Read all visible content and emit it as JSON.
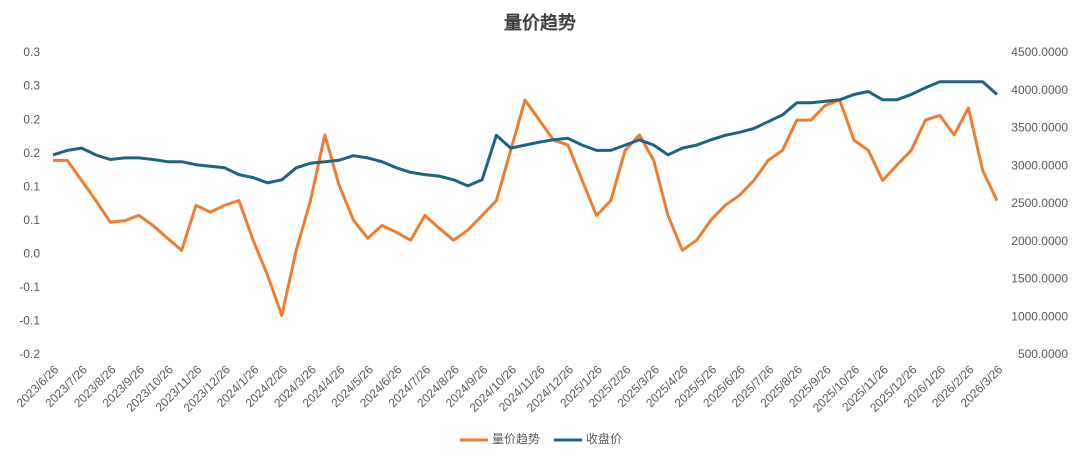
{
  "chart_data": {
    "type": "line",
    "title": "量价趋势",
    "categories": [
      "2023/6/26",
      null,
      "2023/7/26",
      null,
      "2023/8/26",
      null,
      "2023/9/26",
      null,
      "2023/10/26",
      null,
      "2023/11/26",
      null,
      "2023/12/26",
      null,
      "2024/1/26",
      null,
      "2024/2/26",
      null,
      "2024/3/26",
      null,
      "2024/4/26",
      null,
      "2024/5/26",
      null,
      "2024/6/26",
      null,
      "2024/7/26",
      null,
      "2024/8/26",
      null,
      "2024/9/26",
      null,
      "2024/10/26",
      null,
      "2024/11/26",
      null,
      "2024/12/26",
      null,
      "2025/1/26",
      null,
      "2025/2/26",
      null,
      "2025/3/26",
      null,
      "2025/4/26",
      null,
      "2025/5/26",
      null,
      "2025/6/26",
      null,
      "2025/7/26",
      null,
      "2025/8/26",
      null,
      "2025/9/26",
      null,
      "2025/10/26",
      null,
      "2025/11/26",
      null,
      "2025/12/26",
      null,
      "2026/1/26",
      null,
      "2026/2/26",
      null,
      "2026/3/26"
    ],
    "series": [
      {
        "name": "量价趋势",
        "color": "#ED7D31",
        "values": [
          0.14,
          0.14,
          0.11,
          0.08,
          0.048,
          0.05,
          0.058,
          0.043,
          0.024,
          0.006,
          0.073,
          0.063,
          0.073,
          0.08,
          0.021,
          -0.031,
          -0.091,
          0.006,
          0.08,
          0.178,
          0.103,
          0.051,
          0.024,
          0.043,
          0.033,
          0.021,
          0.058,
          0.039,
          0.021,
          0.036,
          0.058,
          0.08,
          0.155,
          0.23,
          0.2,
          0.17,
          0.163,
          0.11,
          0.058,
          0.08,
          0.155,
          0.178,
          0.14,
          0.058,
          0.006,
          0.021,
          0.051,
          0.073,
          0.088,
          0.11,
          0.14,
          0.155,
          0.2,
          0.2,
          0.222,
          0.23,
          0.17,
          0.155,
          0.11,
          0.133,
          0.155,
          0.2,
          0.207,
          0.178,
          0.218,
          0.125,
          0.08
        ]
      },
      {
        "name": "收盘价",
        "color": "#1F6381",
        "axis": "y2",
        "values": [
          3150,
          3210,
          3240,
          3150,
          3090,
          3110,
          3110,
          3090,
          3060,
          3060,
          3020,
          3000,
          2980,
          2890,
          2850,
          2780,
          2820,
          2980,
          3040,
          3060,
          3080,
          3140,
          3110,
          3060,
          2980,
          2920,
          2890,
          2870,
          2820,
          2740,
          2820,
          3410,
          3240,
          3280,
          3320,
          3350,
          3370,
          3280,
          3210,
          3210,
          3280,
          3350,
          3280,
          3150,
          3240,
          3280,
          3350,
          3410,
          3450,
          3500,
          3590,
          3680,
          3840,
          3840,
          3860,
          3880,
          3950,
          3990,
          3880,
          3880,
          3950,
          4040,
          4120,
          4120,
          4120,
          4120,
          3950
        ]
      }
    ],
    "ylim": [
      -0.15,
      0.3
    ],
    "yticks": [
      {
        "value": -0.15,
        "label": "-0.2"
      },
      {
        "value": -0.1,
        "label": "-0.1"
      },
      {
        "value": -0.05,
        "label": "-0.1"
      },
      {
        "value": 0,
        "label": "0.0"
      },
      {
        "value": 0.05,
        "label": "0.1"
      },
      0.1,
      {
        "value": 0.15,
        "label": "0.2"
      },
      0.2,
      {
        "value": 0.25,
        "label": "0.3"
      },
      0.3
    ],
    "y2lim": [
      500,
      4500
    ],
    "y2ticks": [
      {
        "value": 500,
        "label": "500.0000"
      },
      {
        "value": 1000,
        "label": "1000.0000"
      },
      {
        "value": 1500,
        "label": "1500.0000"
      },
      {
        "value": 2000,
        "label": "2000.0000"
      },
      {
        "value": 2500,
        "label": "2500.0000"
      },
      {
        "value": 3000,
        "label": "3000.0000"
      },
      {
        "value": 3500,
        "label": "3500.0000"
      },
      {
        "value": 4000,
        "label": "4000.0000"
      },
      {
        "value": 4500,
        "label": "4500.0000"
      }
    ],
    "legend": "bottom"
  }
}
